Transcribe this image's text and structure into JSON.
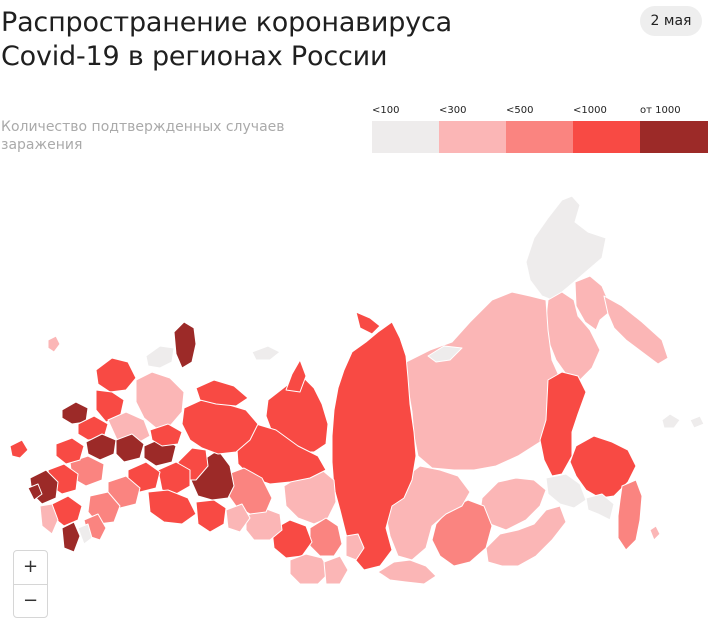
{
  "header": {
    "title_line1": "Распространение коронавируса",
    "title_line2": "Covid-19 в регионах России",
    "date": "2 мая"
  },
  "legend": {
    "caption": "Количество подтвержденных случаев заражения",
    "items": [
      {
        "label": "<100",
        "color": "#eeecec"
      },
      {
        "label": "<300",
        "color": "#fbb6b6"
      },
      {
        "label": "<500",
        "color": "#fa8480"
      },
      {
        "label": "<1000",
        "color": "#f84a44"
      },
      {
        "label": "от 1000",
        "color": "#9c2a28"
      }
    ]
  },
  "zoom": {
    "in_label": "+",
    "out_label": "−"
  },
  "map_colors": {
    "lt100": "#eeecec",
    "lt300": "#fbb6b6",
    "lt500": "#fa8480",
    "lt1000": "#f84a44",
    "gte1000": "#9c2a28",
    "border": "#ffffff"
  }
}
